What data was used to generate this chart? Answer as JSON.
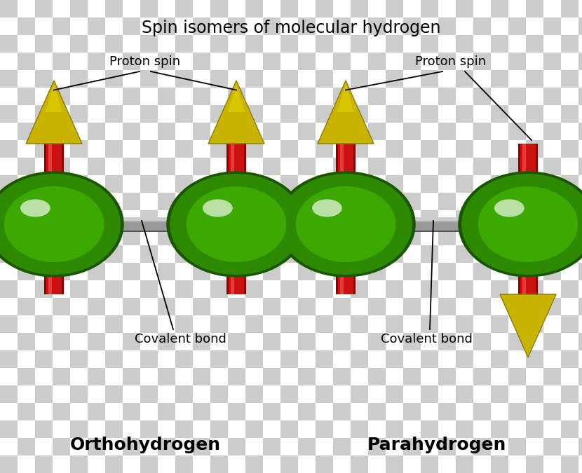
{
  "title": "Spin isomers of molecular hydrogen",
  "background_checker_color1": "#cccccc",
  "background_checker_color2": "#ffffff",
  "checker_size": 25,
  "green_dark": "#1a5500",
  "green_mid": "#2d8a00",
  "green_light": "#4cc800",
  "green_highlight": "#b0ff60",
  "red_rod_color": "#cc1111",
  "red_rod_dark": "#880000",
  "yellow_color": "#c8b400",
  "yellow_light": "#e8d800",
  "bond_color_light": "#aaaaaa",
  "bond_color_dark": "#666666",
  "ortho_label": "Orthohydrogen",
  "para_label": "Parahydrogen",
  "proton_spin_label": "Proton spin",
  "covalent_bond_label": "Covalent bond",
  "title_fontsize": 17,
  "label_fontsize": 18,
  "annotation_fontsize": 13
}
